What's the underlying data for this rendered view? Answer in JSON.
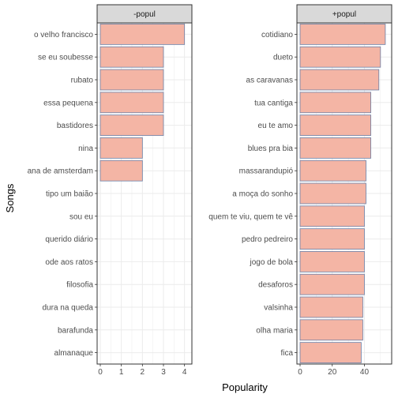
{
  "chart_data": {
    "type": "bar",
    "orientation": "horizontal",
    "xlabel": "Popularity",
    "ylabel": "Songs",
    "grid": true,
    "colors": {
      "bar_fill": "#f4b5a5",
      "bar_stroke": "#6b7fa6",
      "strip_fill": "#d9d9d9",
      "panel_border": "#333333",
      "grid": "#ebebeb"
    },
    "panels": [
      {
        "strip": "-popul",
        "xlim": [
          0,
          4.2
        ],
        "xticks": [
          0,
          1,
          2,
          3,
          4
        ],
        "categories": [
          "o velho francisco",
          "se eu soubesse",
          "rubato",
          "essa pequena",
          "bastidores",
          "nina",
          "ana de amsterdam",
          "tipo um baião",
          "sou eu",
          "querido diário",
          "ode aos ratos",
          "filosofia",
          "dura na queda",
          "barafunda",
          "almanaque"
        ],
        "values": [
          4,
          3,
          3,
          3,
          3,
          2,
          2,
          0,
          0,
          0,
          0,
          0,
          0,
          0,
          0
        ]
      },
      {
        "strip": "+popul",
        "xlim": [
          0,
          55
        ],
        "xticks": [
          0,
          20,
          40
        ],
        "categories": [
          "cotidiano",
          "dueto",
          "as caravanas",
          "tua cantiga",
          "eu te amo",
          "blues pra bia",
          "massarandupió",
          "a moça do sonho",
          "quem te viu, quem te vê",
          "pedro pedreiro",
          "jogo de bola",
          "desaforos",
          "valsinha",
          "olha maria",
          "fica"
        ],
        "values": [
          53,
          50,
          49,
          44,
          44,
          44,
          41,
          41,
          40,
          40,
          40,
          40,
          39,
          39,
          38
        ]
      }
    ]
  }
}
